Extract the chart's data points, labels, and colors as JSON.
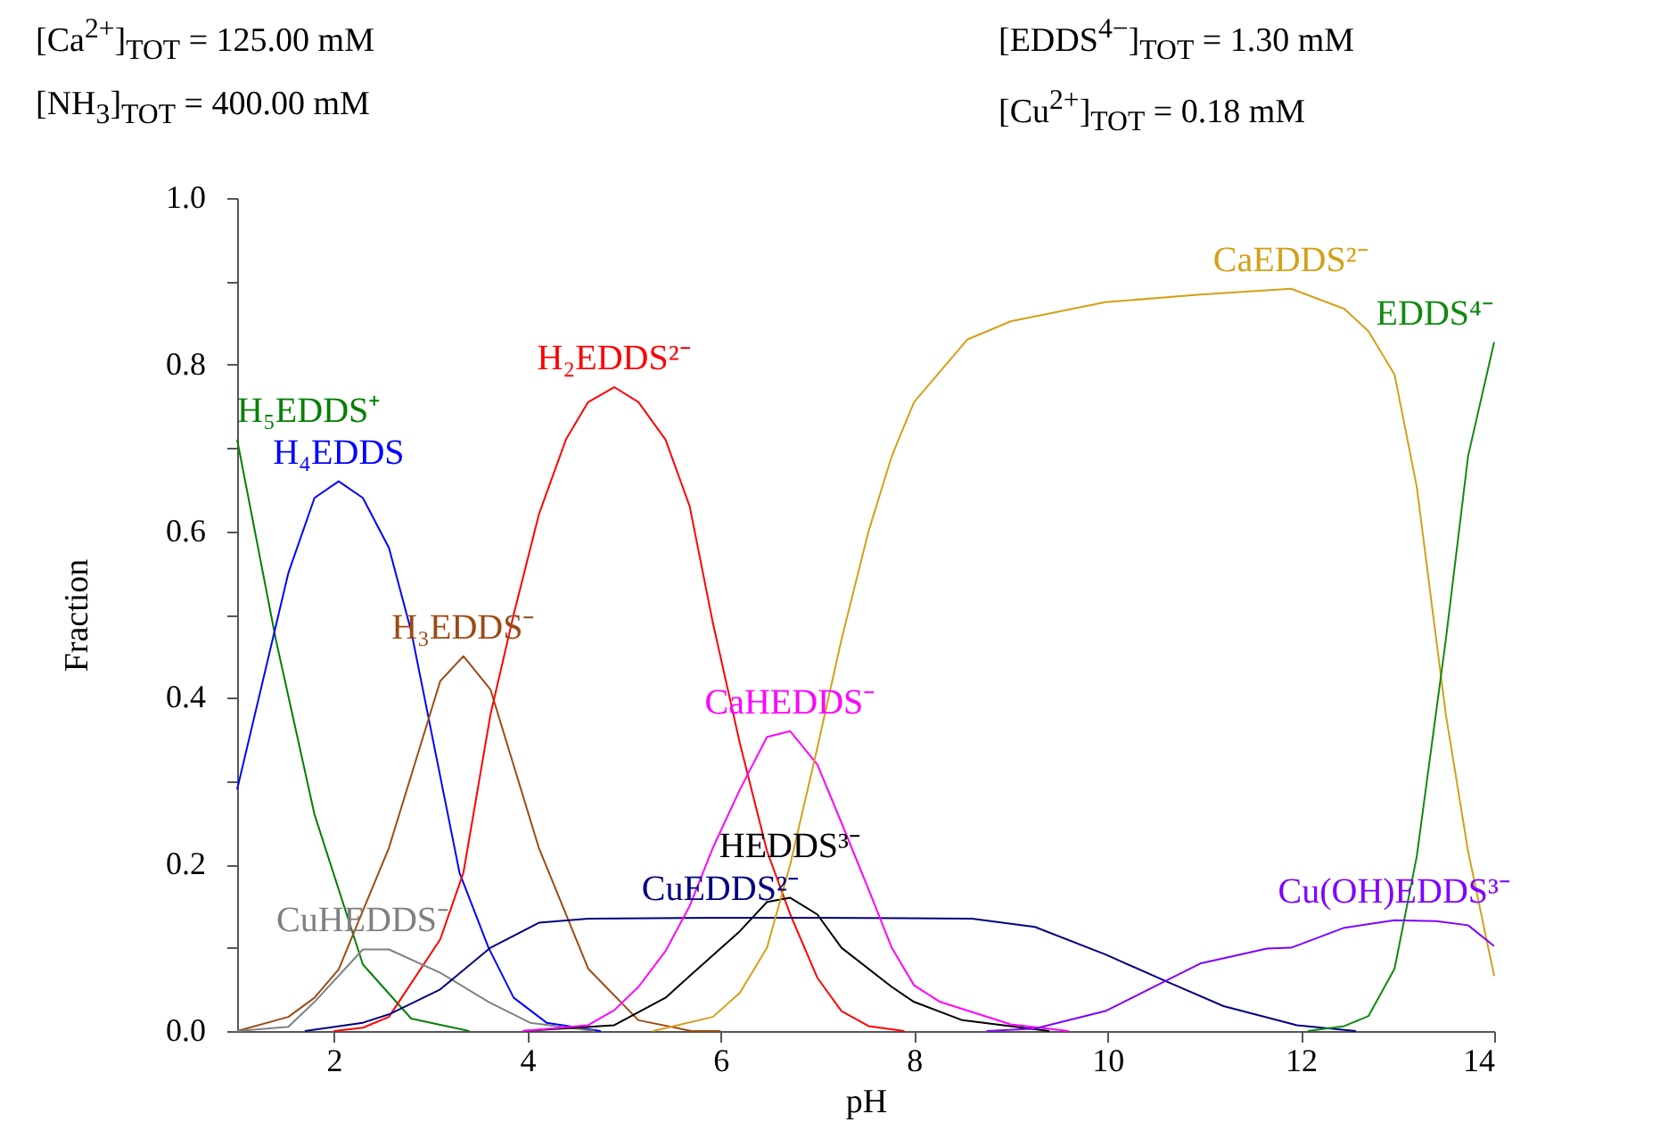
{
  "chart_data": {
    "type": "line",
    "xlabel": "pH",
    "ylabel": "Fraction",
    "annotations": [
      "[Ca$^{2+}$]$_{TOT}$ =  125.00 mM",
      "[NH$_{3}$]$_{TOT}$ =  400.00 mM",
      "[EDDS$^{4−}$]$_{TOT}$ =    1.30 mM",
      "[Cu$^{2+}$]$_{TOT}$ =    0.18 mM"
    ],
    "xlim": [
      1,
      14
    ],
    "xticks": [
      2,
      4,
      6,
      8,
      10,
      12,
      14
    ],
    "ylim": [
      0,
      1
    ],
    "yticks": [
      {
        "value": 0,
        "label": "0.0"
      },
      {
        "value": 0.1,
        "label": null
      },
      {
        "value": 0.2,
        "label": "0.2"
      },
      {
        "value": 0.3,
        "label": null
      },
      {
        "value": 0.4,
        "label": "0.4"
      },
      {
        "value": 0.5,
        "label": null
      },
      {
        "value": 0.6,
        "label": "0.6"
      },
      {
        "value": 0.7,
        "label": null
      },
      {
        "value": 0.8,
        "label": "0.8"
      },
      {
        "value": 0.9,
        "label": null
      },
      {
        "value": 1,
        "label": "1.0"
      }
    ],
    "grid": false,
    "legend": false,
    "line_style": "solid",
    "marker": "none",
    "series": [
      {
        "name": "H₅EDDS⁺",
        "color": "#008000",
        "x": [
          1,
          1.4,
          1.8,
          2.3,
          2.8,
          3.4
        ],
        "values": [
          0.71,
          0.47,
          0.26,
          0.08,
          0.015,
          0
        ]
      },
      {
        "name": "H₄EDDS",
        "color": "#0000ff",
        "x": [
          1,
          1.53,
          1.8,
          2.05,
          2.3,
          2.57,
          2.8,
          3.3,
          3.6,
          3.86,
          4.2,
          4.76
        ],
        "values": [
          0.29,
          0.55,
          0.64,
          0.66,
          0.64,
          0.58,
          0.48,
          0.19,
          0.1,
          0.04,
          0.01,
          0
        ]
      },
      {
        "name": "H₃EDDS⁻",
        "color": "#9c4a13",
        "x": [
          1,
          1.53,
          1.8,
          2.05,
          2.57,
          3.1,
          3.34,
          3.62,
          4.12,
          4.63,
          5.15,
          5.7,
          6
        ],
        "values": [
          0,
          0.017,
          0.04,
          0.074,
          0.22,
          0.42,
          0.45,
          0.41,
          0.22,
          0.075,
          0.013,
          0,
          0
        ]
      },
      {
        "name": "H₂EDDS²⁻",
        "color": "#ff0000",
        "x": [
          2,
          2.3,
          2.57,
          3.1,
          3.34,
          3.62,
          3.86,
          4.12,
          4.4,
          4.63,
          4.9,
          5.15,
          5.43,
          5.68,
          5.92,
          6.2,
          6.48,
          6.72,
          7,
          7.25,
          7.53,
          7.9
        ],
        "values": [
          0,
          0.004,
          0.017,
          0.11,
          0.19,
          0.38,
          0.5,
          0.62,
          0.71,
          0.755,
          0.773,
          0.755,
          0.71,
          0.63,
          0.49,
          0.345,
          0.216,
          0.14,
          0.064,
          0.024,
          0.006,
          0
        ]
      },
      {
        "name": "CuHEDDS⁻",
        "color": "#808080",
        "x": [
          1,
          1.53,
          1.8,
          2.3,
          2.57,
          3.1,
          3.6,
          4.03,
          4.7
        ],
        "values": [
          0,
          0.005,
          0.035,
          0.098,
          0.098,
          0.07,
          0.035,
          0.01,
          0
        ]
      },
      {
        "name": "CuEDDS²⁻",
        "color": "#000080",
        "x": [
          1.7,
          2.3,
          2.57,
          3.1,
          3.62,
          4.12,
          4.63,
          6,
          7,
          8.6,
          9.25,
          9.98,
          10.6,
          11.2,
          11.96,
          12.57
        ],
        "values": [
          0,
          0.01,
          0.02,
          0.05,
          0.1,
          0.13,
          0.135,
          0.136,
          0.136,
          0.135,
          0.125,
          0.092,
          0.06,
          0.03,
          0.007,
          0
        ]
      },
      {
        "name": "HEDDS³⁻",
        "color": "#000000",
        "x": [
          3.95,
          4.9,
          5.43,
          5.68,
          6.2,
          6.48,
          6.72,
          7,
          7.25,
          7.77,
          8,
          8.5,
          9.4
        ],
        "values": [
          0,
          0.007,
          0.04,
          0.066,
          0.12,
          0.155,
          0.16,
          0.14,
          0.1,
          0.053,
          0.035,
          0.013,
          0
        ]
      },
      {
        "name": "CaHEDDS⁻",
        "color": "#ff00ff",
        "x": [
          3.95,
          4.63,
          4.9,
          5.15,
          5.43,
          5.68,
          5.92,
          6.2,
          6.48,
          6.72,
          7,
          7.25,
          7.53,
          7.77,
          8,
          8.27,
          9,
          9.6
        ],
        "values": [
          0,
          0.007,
          0.025,
          0.053,
          0.096,
          0.15,
          0.22,
          0.29,
          0.353,
          0.36,
          0.32,
          0.25,
          0.17,
          0.1,
          0.055,
          0.035,
          0.008,
          0
        ]
      },
      {
        "name": "CaEDDS²⁻",
        "color": "#d4a017",
        "x": [
          5.3,
          5.92,
          6.2,
          6.48,
          6.72,
          7,
          7.25,
          7.53,
          7.77,
          8,
          8.55,
          9,
          9.98,
          10.96,
          11.9,
          12.45,
          12.7,
          12.97,
          13.2,
          13.5,
          13.73,
          14
        ],
        "values": [
          0,
          0.017,
          0.046,
          0.1,
          0.2,
          0.34,
          0.47,
          0.6,
          0.69,
          0.755,
          0.83,
          0.852,
          0.875,
          0.884,
          0.891,
          0.867,
          0.84,
          0.788,
          0.653,
          0.38,
          0.216,
          0.066
        ]
      },
      {
        "name": "EDDS⁴⁻",
        "color": "#108a10",
        "x": [
          12.07,
          12.45,
          12.7,
          12.97,
          13.2,
          13.5,
          13.73,
          14
        ],
        "values": [
          0,
          0.006,
          0.018,
          0.075,
          0.21,
          0.47,
          0.69,
          0.827
        ]
      },
      {
        "name": "Cu(OH)EDDS³⁻",
        "color": "#8000ff",
        "x": [
          8.75,
          9.25,
          9.98,
          10.6,
          10.96,
          11.65,
          11.9,
          12.45,
          12.97,
          13.4,
          13.73,
          14
        ],
        "values": [
          0,
          0.003,
          0.024,
          0.06,
          0.081,
          0.099,
          0.1,
          0.124,
          0.133,
          0.132,
          0.127,
          0.102
        ]
      }
    ]
  }
}
